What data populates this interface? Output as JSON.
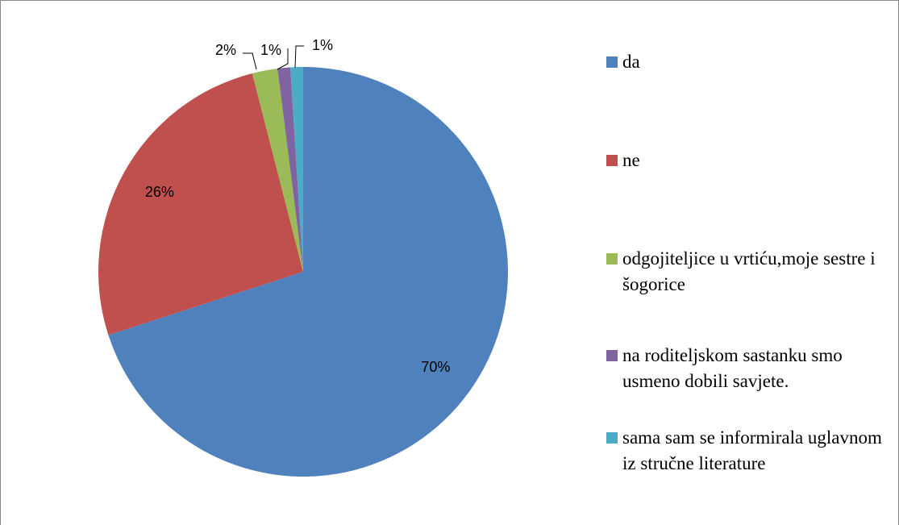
{
  "chart_data": {
    "type": "pie",
    "categories": [
      "da",
      "ne",
      "odgojiteljice u vrtiću,moje sestre i šogorice",
      "na roditeljskom sastanku smo usmeno dobili savjete.",
      "sama sam se informirala uglavnom iz stručne literature"
    ],
    "values": [
      70,
      26,
      2,
      1,
      1
    ],
    "value_labels": [
      "70%",
      "26%",
      "2%",
      "1%",
      "1%"
    ],
    "colors": [
      "#4f81bd",
      "#c0504d",
      "#9bbb59",
      "#8064a2",
      "#4bacc6"
    ],
    "legend": "right"
  }
}
